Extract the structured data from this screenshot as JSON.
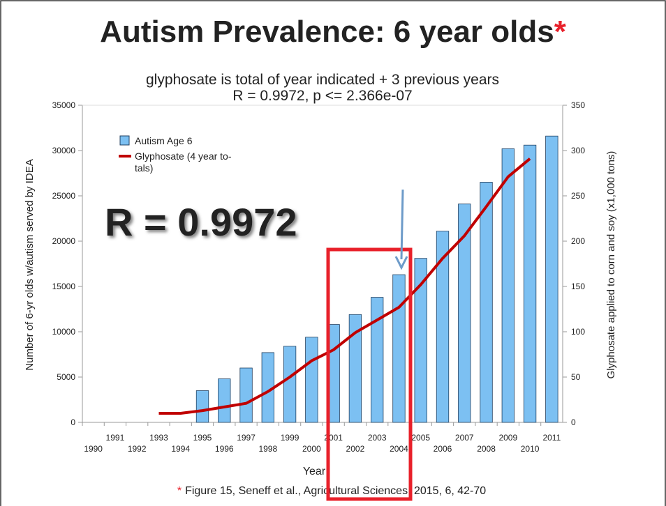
{
  "chart_data": {
    "type": "bar",
    "title": "Autism Prevalence: 6 year olds",
    "title_mark": "*",
    "subtitle": [
      "glyphosate is total of year indicated + 3 previous years",
      "R = 0.9972, p <= 2.366e-07"
    ],
    "annotation": "R = 0.9972",
    "x_label": "Year",
    "y_label": "Number of 6-yr olds w/autism served by IDEA",
    "y2_label": "Glyphosate applied to corn and soy (x1,000 tons)",
    "categories": [
      "1990",
      "1991",
      "1992",
      "1993",
      "1994",
      "1995",
      "1996",
      "1997",
      "1998",
      "1999",
      "2000",
      "2001",
      "2002",
      "2003",
      "2004",
      "2005",
      "2006",
      "2007",
      "2008",
      "2009",
      "2010",
      "2011"
    ],
    "series": [
      {
        "name": "Autism Age 6",
        "type": "bar",
        "color": "#7cc0f2",
        "values": [
          null,
          null,
          null,
          null,
          null,
          3500,
          4800,
          6000,
          7700,
          8400,
          9400,
          10800,
          11900,
          13800,
          16300,
          18100,
          21100,
          24100,
          26500,
          30200,
          30600,
          31600
        ]
      },
      {
        "name": "Glyphosate (4 year to- tals)",
        "type": "line",
        "color": "#c00000",
        "axis": "y2",
        "values": [
          null,
          null,
          null,
          10,
          10,
          13,
          17,
          21,
          34,
          50,
          68,
          80,
          99,
          113,
          127,
          152,
          181,
          206,
          238,
          271,
          291,
          null
        ]
      }
    ],
    "ylim": [
      0,
      35000
    ],
    "yticks": [
      0,
      5000,
      10000,
      15000,
      20000,
      25000,
      30000,
      35000
    ],
    "y2lim": [
      0,
      350
    ],
    "y2ticks": [
      0,
      50,
      100,
      150,
      200,
      250,
      300,
      350
    ],
    "grid": false,
    "legend": "upper left",
    "footnote_mark": "*",
    "footnote": "Figure 15, Seneff et al., Agricultural Sciences, 2015, 6, 42-70"
  }
}
